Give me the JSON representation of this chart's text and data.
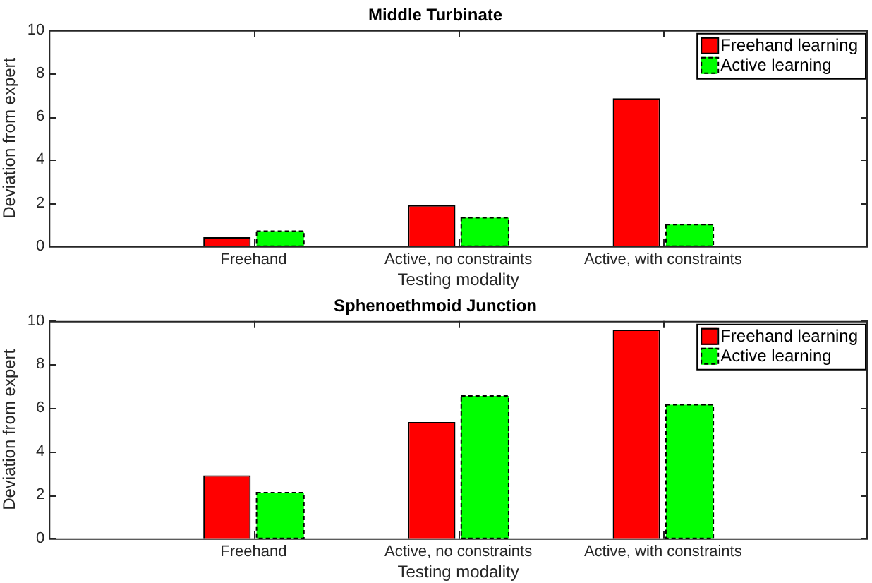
{
  "chart_data": [
    {
      "type": "bar",
      "title": "Middle Turbinate",
      "xlabel": "Testing modality",
      "ylabel": "Deviation from expert",
      "categories": [
        "Freehand",
        "Active, no constraints",
        "Active, with constraints"
      ],
      "series": [
        {
          "name": "Freehand learning",
          "color": "#ff0000",
          "line_style": "solid",
          "values": [
            0.42,
            1.9,
            6.85
          ]
        },
        {
          "name": "Active learning",
          "color": "#00ff00",
          "line_style": "dashed",
          "values": [
            0.7,
            1.32,
            1.0
          ]
        }
      ],
      "ylim": [
        0,
        10
      ],
      "yticks": [
        0,
        2,
        4,
        6,
        8,
        10
      ],
      "grid": false,
      "legend": "top right"
    },
    {
      "type": "bar",
      "title": "Sphenoethmoid Junction",
      "xlabel": "Testing modality",
      "ylabel": "Deviation from expert",
      "categories": [
        "Freehand",
        "Active, no constraints",
        "Active, with constraints"
      ],
      "series": [
        {
          "name": "Freehand learning",
          "color": "#ff0000",
          "line_style": "solid",
          "values": [
            2.9,
            5.35,
            9.6
          ]
        },
        {
          "name": "Active learning",
          "color": "#00ff00",
          "line_style": "dashed",
          "values": [
            2.1,
            6.55,
            6.15
          ]
        }
      ],
      "ylim": [
        0,
        10
      ],
      "yticks": [
        0,
        2,
        4,
        6,
        8,
        10
      ],
      "grid": false,
      "legend": "top right"
    }
  ]
}
